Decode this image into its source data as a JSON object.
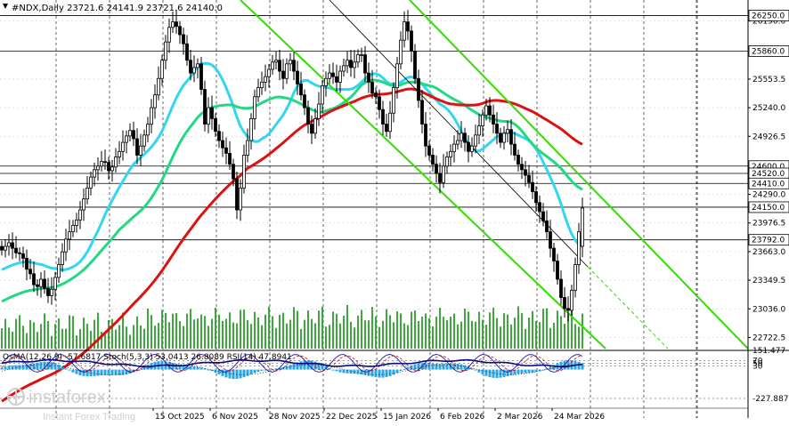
{
  "chart_data": {
    "type": "candlestick",
    "title": "#NDX,Daily  23721.6 24141.9 23721.6 24140.0",
    "symbol": "#NDX,Daily",
    "ohlc_last": {
      "open": 23721.6,
      "high": 24141.9,
      "low": 23721.6,
      "close": 24140.0
    },
    "ylim": [
      22600,
      26420
    ],
    "price_axis_ticks": [
      26190.0,
      25553.5,
      25240.0,
      24926.5,
      24290.0,
      23976.5,
      23663.0,
      23349.5,
      23036.0,
      22722.5
    ],
    "levels": [
      {
        "value": 26250.0,
        "label": "26250.0"
      },
      {
        "value": 25860.0,
        "label": "25860.0"
      },
      {
        "value": 24600.0,
        "label": "24600.0"
      },
      {
        "value": 24520.0,
        "label": "24520.0"
      },
      {
        "value": 24410.0,
        "label": "24410.0"
      },
      {
        "value": 24150.0,
        "label": "24150.0"
      },
      {
        "value": 23792.0,
        "label": "23792.0"
      }
    ],
    "date_labels": [
      "15 Oct 2025",
      "6 Nov 2025",
      "28 Nov 2025",
      "22 Dec 2025",
      "15 Jan 2026",
      "6 Feb 2026",
      "2 Mar 2026",
      "24 Mar 2026"
    ],
    "date_label_index": [
      45,
      61,
      77,
      93,
      109,
      125,
      141,
      157
    ],
    "closes": [
      23680,
      23720,
      23760,
      23700,
      23650,
      23640,
      23590,
      23470,
      23420,
      23300,
      23280,
      23360,
      23260,
      23180,
      23250,
      23380,
      23520,
      23660,
      23800,
      23880,
      23950,
      24010,
      24120,
      24240,
      24360,
      24480,
      24560,
      24600,
      24650,
      24640,
      24550,
      24590,
      24700,
      24760,
      24860,
      24930,
      24990,
      24900,
      24720,
      24820,
      24940,
      25060,
      25240,
      25380,
      25560,
      25760,
      25960,
      26120,
      26180,
      26130,
      26040,
      25940,
      25760,
      25620,
      25680,
      25720,
      25440,
      25060,
      25240,
      25120,
      24980,
      24880,
      24800,
      24740,
      24620,
      24460,
      24120,
      24360,
      24720,
      24880,
      25120,
      25360,
      25460,
      25520,
      25580,
      25660,
      25740,
      25760,
      25640,
      25560,
      25720,
      25760,
      25640,
      25500,
      25380,
      25240,
      25060,
      24960,
      25120,
      25280,
      25480,
      25560,
      25620,
      25580,
      25520,
      25640,
      25700,
      25760,
      25680,
      25740,
      25820,
      25820,
      25620,
      25520,
      25400,
      25360,
      25220,
      25060,
      24980,
      25180,
      25460,
      25720,
      25980,
      26180,
      26080,
      25860,
      25560,
      25320,
      25060,
      24820,
      24720,
      24620,
      24520,
      24420,
      24600,
      24700,
      24760,
      24840,
      24880,
      24960,
      24860,
      24760,
      24820,
      24940,
      25040,
      25160,
      25260,
      25160,
      25060,
      24960,
      24860,
      24960,
      25000,
      24840,
      24720,
      24620,
      24560,
      24500,
      24420,
      24320,
      24200,
      24100,
      24000,
      23880,
      23700,
      23560,
      23360,
      23160,
      23040,
      23020,
      23240,
      23520,
      23880,
      24140
    ],
    "ma_periods": [
      50,
      100,
      200
    ],
    "ma_colors": [
      "#33d6f0",
      "#22d885",
      "#dd1111"
    ],
    "trend_line_color": "#33dd00",
    "lower_panel": {
      "label": "OsMA(12,26,9) -57.6817  Stoch(5,3,3) 53.0413 26.8089  RSI(14) 47.8941",
      "axis_ticks": [
        "151.477",
        "70",
        "50",
        "30",
        "-227.887"
      ],
      "levels": [
        151.477,
        70,
        50,
        30,
        -227.887
      ]
    }
  },
  "watermark": {
    "brand": "instaforex",
    "tagline": "Instant Forex Trading"
  },
  "colors": {
    "bull": "#11aa11",
    "bear": "#000000",
    "grid": "#000000"
  }
}
